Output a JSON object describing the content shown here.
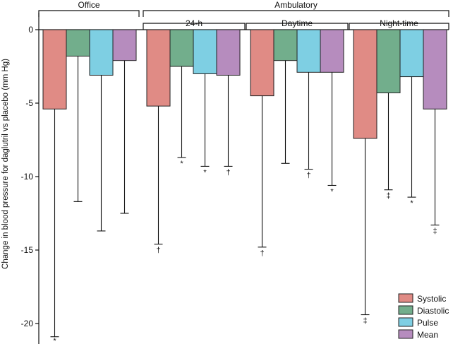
{
  "chart_data": {
    "type": "bar",
    "title": "",
    "xlabel": "",
    "ylabel": "Change in blood pressure for daglutril vs placebo (mm Hg)",
    "ylim": [
      -21.5,
      0
    ],
    "yticks": [
      0,
      -5,
      -10,
      -15,
      -20
    ],
    "ytick_labels": [
      "0",
      "-5",
      "-10",
      "-15",
      "-20"
    ],
    "super_groups": [
      {
        "label": "Office",
        "groups": [
          0
        ]
      },
      {
        "label": "Ambulatory",
        "groups": [
          1,
          2,
          3
        ]
      }
    ],
    "groups": [
      "",
      "24-h",
      "Daytime",
      "Night-time"
    ],
    "series": [
      {
        "name": "Systolic",
        "color": "#e08b85",
        "values": [
          -5.4,
          -5.2,
          -4.5,
          -7.4
        ],
        "ci_lower": [
          -20.9,
          -14.6,
          -14.8,
          -19.4
        ],
        "sig": [
          "*",
          "†",
          "†",
          "‡"
        ]
      },
      {
        "name": "Diastolic",
        "color": "#72ae8c",
        "values": [
          -1.8,
          -2.5,
          -2.1,
          -4.3
        ],
        "ci_lower": [
          -11.7,
          -8.7,
          -9.1,
          -10.9
        ],
        "sig": [
          "",
          "*",
          "",
          "‡"
        ]
      },
      {
        "name": "Pulse",
        "color": "#7ecfe3",
        "values": [
          -3.1,
          -3.0,
          -2.9,
          -3.2
        ],
        "ci_lower": [
          -13.7,
          -9.3,
          -9.5,
          -11.4
        ],
        "sig": [
          "",
          "*",
          "†",
          "*"
        ]
      },
      {
        "name": "Mean",
        "color": "#b68cbe",
        "values": [
          -2.1,
          -3.1,
          -2.9,
          -5.4
        ],
        "ci_lower": [
          -12.5,
          -9.3,
          -10.6,
          -13.3
        ],
        "sig": [
          "",
          "†",
          "*",
          "‡"
        ]
      }
    ],
    "legend": {
      "position": "bottom-right",
      "labels": [
        "Systolic",
        "Diastolic",
        "Pulse",
        "Mean"
      ]
    }
  }
}
